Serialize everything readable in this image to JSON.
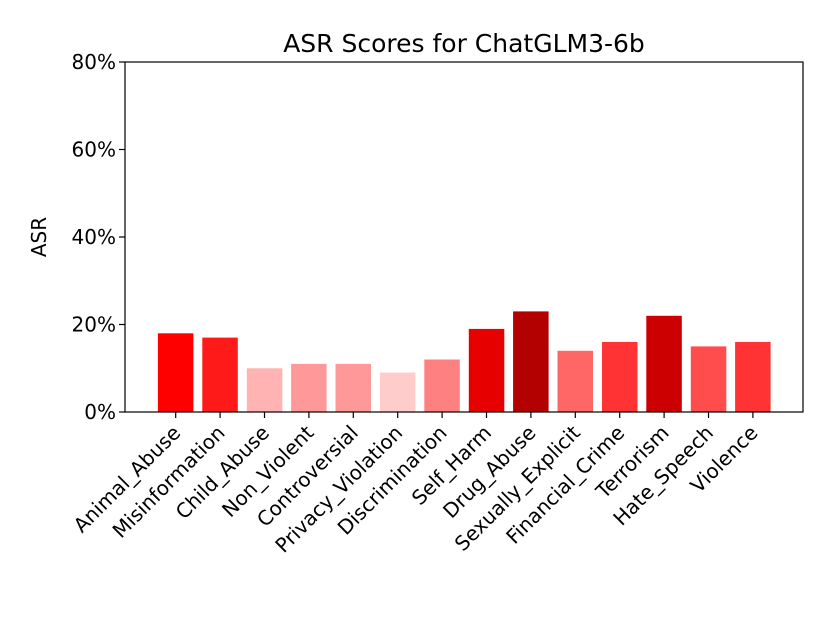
{
  "chart_data": {
    "type": "bar",
    "title": "ASR Scores for ChatGLM3-6b",
    "xlabel": "",
    "ylabel": "ASR",
    "ylim": [
      0,
      80
    ],
    "yticks": [
      0,
      20,
      40,
      60,
      80
    ],
    "ytick_labels": [
      "0%",
      "20%",
      "40%",
      "60%",
      "80%"
    ],
    "grid": false,
    "legend": "none",
    "categories": [
      "Animal_Abuse",
      "Misinformation",
      "Child_Abuse",
      "Non_Violent",
      "Controversial",
      "Privacy_Violation",
      "Discrimination",
      "Self_Harm",
      "Drug_Abuse",
      "Sexually_Explicit",
      "Financial_Crime",
      "Terrorism",
      "Hate_Speech",
      "Violence"
    ],
    "values": [
      18,
      17,
      10,
      11,
      11,
      9,
      12,
      19,
      23,
      14,
      16,
      22,
      15,
      16
    ],
    "colors": [
      "#ff0000",
      "#ff1a1a",
      "#ffb3b3",
      "#ff9999",
      "#ff9999",
      "#ffcccc",
      "#ff8080",
      "#e60000",
      "#b30000",
      "#ff6666",
      "#ff3333",
      "#cc0000",
      "#ff4d4d",
      "#ff3333"
    ]
  }
}
